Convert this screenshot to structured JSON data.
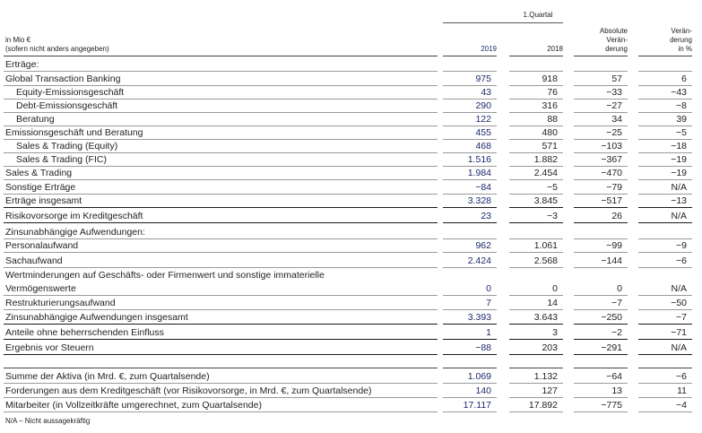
{
  "header": {
    "period": "1.Quartal",
    "unit_line1": "in Mio €",
    "unit_line2": "(sofern nicht anders angegeben)",
    "col1": "2019",
    "col2": "2018",
    "col3_line1": "Absolute",
    "col3_line2": "Verän-",
    "col3_line3": "derung",
    "col4_line1": "Verän-",
    "col4_line2": "derung",
    "col4_line3": "in %"
  },
  "rows": [
    {
      "label": "Erträge:",
      "v1": "",
      "v2": "",
      "v3": "",
      "v4": ""
    },
    {
      "label": "Global Transaction Banking",
      "v1": "975",
      "v2": "918",
      "v3": "57",
      "v4": "6"
    },
    {
      "label": "Equity-Emissionsgeschäft",
      "v1": "43",
      "v2": "76",
      "v3": "−33",
      "v4": "−43"
    },
    {
      "label": "Debt-Emissionsgeschäft",
      "v1": "290",
      "v2": "316",
      "v3": "−27",
      "v4": "−8"
    },
    {
      "label": "Beratung",
      "v1": "122",
      "v2": "88",
      "v3": "34",
      "v4": "39"
    },
    {
      "label": "Emissionsgeschäft und Beratung",
      "v1": "455",
      "v2": "480",
      "v3": "−25",
      "v4": "−5"
    },
    {
      "label": "Sales & Trading (Equity)",
      "v1": "468",
      "v2": "571",
      "v3": "−103",
      "v4": "−18"
    },
    {
      "label": "Sales & Trading (FIC)",
      "v1": "1.516",
      "v2": "1.882",
      "v3": "−367",
      "v4": "−19"
    },
    {
      "label": "Sales & Trading",
      "v1": "1.984",
      "v2": "2.454",
      "v3": "−470",
      "v4": "−19"
    },
    {
      "label": "Sonstige Erträge",
      "v1": "−84",
      "v2": "−5",
      "v3": "−79",
      "v4": "N/A"
    },
    {
      "label": "Erträge insgesamt",
      "v1": "3.328",
      "v2": "3.845",
      "v3": "−517",
      "v4": "−13"
    },
    {
      "label": "Risikovorsorge im Kreditgeschäft",
      "v1": "23",
      "v2": "−3",
      "v3": "26",
      "v4": "N/A"
    },
    {
      "label": "Zinsunabhängige Aufwendungen:",
      "v1": "",
      "v2": "",
      "v3": "",
      "v4": ""
    },
    {
      "label": "Personalaufwand",
      "v1": "962",
      "v2": "1.061",
      "v3": "−99",
      "v4": "−9"
    },
    {
      "label": "Sachaufwand",
      "v1": "2.424",
      "v2": "2.568",
      "v3": "−144",
      "v4": "−6"
    },
    {
      "label": "Wertminderungen auf Geschäfts- oder Firmenwert und sonstige immaterielle",
      "v1": "",
      "v2": "",
      "v3": "",
      "v4": ""
    },
    {
      "label": "Vermögenswerte",
      "v1": "0",
      "v2": "0",
      "v3": "0",
      "v4": "N/A"
    },
    {
      "label": "Restrukturierungsaufwand",
      "v1": "7",
      "v2": "14",
      "v3": "−7",
      "v4": "−50"
    },
    {
      "label": "Zinsunabhängige Aufwendungen insgesamt",
      "v1": "3.393",
      "v2": "3.643",
      "v3": "−250",
      "v4": "−7"
    },
    {
      "label": "Anteile ohne beherrschenden Einfluss",
      "v1": "1",
      "v2": "3",
      "v3": "−2",
      "v4": "−71"
    },
    {
      "label": "Ergebnis vor Steuern",
      "v1": "−88",
      "v2": "203",
      "v3": "−291",
      "v4": "N/A"
    },
    {
      "label": "Summe der Aktiva (in Mrd. €, zum Quartalsende)",
      "v1": "1.069",
      "v2": "1.132",
      "v3": "−64",
      "v4": "−6"
    },
    {
      "label": "Forderungen aus dem Kreditgeschäft (vor Risikovorsorge, in Mrd. €, zum Quartalsende)",
      "v1": "140",
      "v2": "127",
      "v3": "13",
      "v4": "11"
    },
    {
      "label": "Mitarbeiter (in Vollzeitkräfte umgerechnet, zum Quartalsende)",
      "v1": "17.117",
      "v2": "17.892",
      "v3": "−775",
      "v4": "−4"
    }
  ],
  "footnote": "N/A – Nicht aussagekräftig"
}
